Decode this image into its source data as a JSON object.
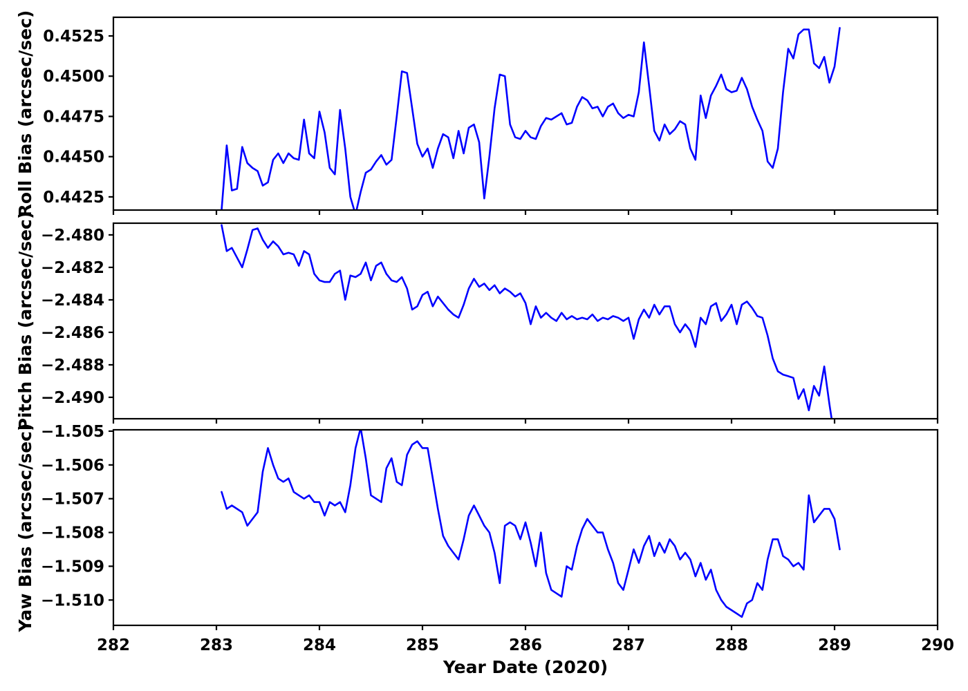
{
  "figure": {
    "background": "#ffffff",
    "axis_color": "#000000"
  },
  "chart_data": {
    "type": "line",
    "title": "",
    "xlabel": "Year Date (2020)",
    "xlim": [
      282,
      290
    ],
    "xticks": [
      282,
      283,
      284,
      285,
      286,
      287,
      288,
      289,
      290
    ],
    "grid": false,
    "legend": "none",
    "line_color": "#0000ff",
    "line_width": 2.6,
    "x": [
      283.05,
      283.1,
      283.15,
      283.2,
      283.25,
      283.3,
      283.35,
      283.4,
      283.45,
      283.5,
      283.55,
      283.6,
      283.65,
      283.7,
      283.75,
      283.8,
      283.85,
      283.9,
      283.95,
      284.0,
      284.05,
      284.1,
      284.15,
      284.2,
      284.25,
      284.3,
      284.35,
      284.4,
      284.45,
      284.5,
      284.55,
      284.6,
      284.65,
      284.7,
      284.75,
      284.8,
      284.85,
      284.9,
      284.95,
      285.0,
      285.05,
      285.1,
      285.15,
      285.2,
      285.25,
      285.3,
      285.35,
      285.4,
      285.45,
      285.5,
      285.55,
      285.6,
      285.65,
      285.7,
      285.75,
      285.8,
      285.85,
      285.9,
      285.95,
      286.0,
      286.05,
      286.1,
      286.15,
      286.2,
      286.25,
      286.3,
      286.35,
      286.4,
      286.45,
      286.5,
      286.55,
      286.6,
      286.65,
      286.7,
      286.75,
      286.8,
      286.85,
      286.9,
      286.95,
      287.0,
      287.05,
      287.1,
      287.15,
      287.2,
      287.25,
      287.3,
      287.35,
      287.4,
      287.45,
      287.5,
      287.55,
      287.6,
      287.65,
      287.7,
      287.75,
      287.8,
      287.85,
      287.9,
      287.95,
      288.0,
      288.05,
      288.1,
      288.15,
      288.2,
      288.25,
      288.3,
      288.35,
      288.4,
      288.45,
      288.5,
      288.55,
      288.6,
      288.65,
      288.7,
      288.75,
      288.8,
      288.85,
      288.9,
      288.95,
      289.0,
      289.05
    ],
    "panels": [
      {
        "id": "roll",
        "ylabel": "Roll Bias (arcsec/sec)",
        "ylim": [
          0.44168,
          0.45366
        ],
        "yticks": [
          0.4425,
          0.445,
          0.4475,
          0.45,
          0.4525
        ],
        "tick_decimals": 4,
        "y": [
          0.4417,
          0.4457,
          0.4429,
          0.443,
          0.4456,
          0.4446,
          0.4443,
          0.4441,
          0.4432,
          0.4434,
          0.4448,
          0.4452,
          0.4446,
          0.4452,
          0.4449,
          0.4448,
          0.4473,
          0.4452,
          0.4449,
          0.4478,
          0.4465,
          0.4443,
          0.4439,
          0.4479,
          0.4455,
          0.4425,
          0.4414,
          0.4428,
          0.444,
          0.4442,
          0.4447,
          0.4451,
          0.4445,
          0.4448,
          0.4475,
          0.4503,
          0.4502,
          0.448,
          0.4458,
          0.445,
          0.4455,
          0.4443,
          0.4455,
          0.4464,
          0.4462,
          0.4449,
          0.4466,
          0.4452,
          0.4468,
          0.447,
          0.4459,
          0.4424,
          0.445,
          0.448,
          0.4501,
          0.45,
          0.447,
          0.4462,
          0.4461,
          0.4466,
          0.4462,
          0.4461,
          0.4469,
          0.4474,
          0.4473,
          0.4475,
          0.4477,
          0.447,
          0.4471,
          0.4481,
          0.4487,
          0.4485,
          0.448,
          0.4481,
          0.4475,
          0.4481,
          0.4483,
          0.4477,
          0.4474,
          0.4476,
          0.4475,
          0.449,
          0.4521,
          0.4494,
          0.4466,
          0.446,
          0.447,
          0.4464,
          0.4467,
          0.4472,
          0.447,
          0.4455,
          0.4448,
          0.4488,
          0.4474,
          0.4488,
          0.4494,
          0.4501,
          0.4492,
          0.449,
          0.4491,
          0.4499,
          0.4492,
          0.4481,
          0.4473,
          0.4466,
          0.4447,
          0.4443,
          0.4455,
          0.449,
          0.4517,
          0.4511,
          0.4526,
          0.4529,
          0.4529,
          0.4508,
          0.4505,
          0.4512,
          0.4496,
          0.4506,
          0.453
        ]
      },
      {
        "id": "pitch",
        "ylabel": "Pitch Bias (arcsec/sec)",
        "ylim": [
          -2.49132,
          -2.47928
        ],
        "yticks": [
          -2.49,
          -2.488,
          -2.486,
          -2.484,
          -2.482,
          -2.48
        ],
        "tick_decimals": 3,
        "y": [
          -2.4794,
          -2.481,
          -2.4808,
          -2.4814,
          -2.482,
          -2.4809,
          -2.4797,
          -2.4796,
          -2.4803,
          -2.4808,
          -2.4804,
          -2.4807,
          -2.4812,
          -2.4811,
          -2.4812,
          -2.4819,
          -2.481,
          -2.4812,
          -2.4824,
          -2.4828,
          -2.4829,
          -2.4829,
          -2.4824,
          -2.4822,
          -2.484,
          -2.4825,
          -2.4826,
          -2.4824,
          -2.4817,
          -2.4828,
          -2.4819,
          -2.4817,
          -2.4824,
          -2.4828,
          -2.4829,
          -2.4826,
          -2.4833,
          -2.4846,
          -2.4844,
          -2.4837,
          -2.4835,
          -2.4844,
          -2.4838,
          -2.4842,
          -2.4846,
          -2.4849,
          -2.4851,
          -2.4843,
          -2.4833,
          -2.4827,
          -2.4832,
          -2.483,
          -2.4834,
          -2.4831,
          -2.4836,
          -2.4833,
          -2.4835,
          -2.4838,
          -2.4836,
          -2.4842,
          -2.4855,
          -2.4844,
          -2.4851,
          -2.4848,
          -2.4851,
          -2.4853,
          -2.4848,
          -2.4852,
          -2.485,
          -2.4852,
          -2.4851,
          -2.4852,
          -2.4849,
          -2.4853,
          -2.4851,
          -2.4852,
          -2.485,
          -2.4851,
          -2.4853,
          -2.4851,
          -2.4864,
          -2.4852,
          -2.4846,
          -2.4851,
          -2.4843,
          -2.4849,
          -2.4844,
          -2.4844,
          -2.4855,
          -2.486,
          -2.4855,
          -2.4859,
          -2.4869,
          -2.4851,
          -2.4855,
          -2.4844,
          -2.4842,
          -2.4853,
          -2.4849,
          -2.4843,
          -2.4855,
          -2.4843,
          -2.4841,
          -2.4845,
          -2.485,
          -2.4851,
          -2.4862,
          -2.4876,
          -2.4884,
          -2.4886,
          -2.4887,
          -2.4888,
          -2.4901,
          -2.4895,
          -2.4908,
          -2.4893,
          -2.4899,
          -2.4881,
          -2.4904,
          -2.4925,
          -2.4935
        ]
      },
      {
        "id": "yaw",
        "ylabel": "Yaw Bias (arcsec/sec)",
        "ylim": [
          -1.51075,
          -1.50496
        ],
        "yticks": [
          -1.51,
          -1.509,
          -1.508,
          -1.507,
          -1.506,
          -1.505
        ],
        "tick_decimals": 3,
        "y": [
          -1.5068,
          -1.5073,
          -1.5072,
          -1.5073,
          -1.5074,
          -1.5078,
          -1.5076,
          -1.5074,
          -1.5062,
          -1.5055,
          -1.506,
          -1.5064,
          -1.5065,
          -1.5064,
          -1.5068,
          -1.5069,
          -1.507,
          -1.5069,
          -1.5071,
          -1.5071,
          -1.5075,
          -1.5071,
          -1.5072,
          -1.5071,
          -1.5074,
          -1.5066,
          -1.5055,
          -1.5049,
          -1.5058,
          -1.5069,
          -1.507,
          -1.5071,
          -1.5061,
          -1.5058,
          -1.5065,
          -1.5066,
          -1.5057,
          -1.5054,
          -1.5053,
          -1.5055,
          -1.5055,
          -1.5064,
          -1.5073,
          -1.5081,
          -1.5084,
          -1.5086,
          -1.5088,
          -1.5082,
          -1.5075,
          -1.5072,
          -1.5075,
          -1.5078,
          -1.508,
          -1.5086,
          -1.5095,
          -1.5078,
          -1.5077,
          -1.5078,
          -1.5082,
          -1.5077,
          -1.5083,
          -1.509,
          -1.508,
          -1.5092,
          -1.5097,
          -1.5098,
          -1.5099,
          -1.509,
          -1.5091,
          -1.5084,
          -1.5079,
          -1.5076,
          -1.5078,
          -1.508,
          -1.508,
          -1.5085,
          -1.5089,
          -1.5095,
          -1.5097,
          -1.5091,
          -1.5085,
          -1.5089,
          -1.5084,
          -1.5081,
          -1.5087,
          -1.5083,
          -1.5086,
          -1.5082,
          -1.5084,
          -1.5088,
          -1.5086,
          -1.5088,
          -1.5093,
          -1.5089,
          -1.5094,
          -1.5091,
          -1.5097,
          -1.51,
          -1.5102,
          -1.5103,
          -1.5104,
          -1.5105,
          -1.5101,
          -1.51,
          -1.5095,
          -1.5097,
          -1.5088,
          -1.5082,
          -1.5082,
          -1.5087,
          -1.5088,
          -1.509,
          -1.5089,
          -1.5091,
          -1.5069,
          -1.5077,
          -1.5075,
          -1.5073,
          -1.5073,
          -1.5076,
          -1.5085
        ]
      }
    ]
  }
}
